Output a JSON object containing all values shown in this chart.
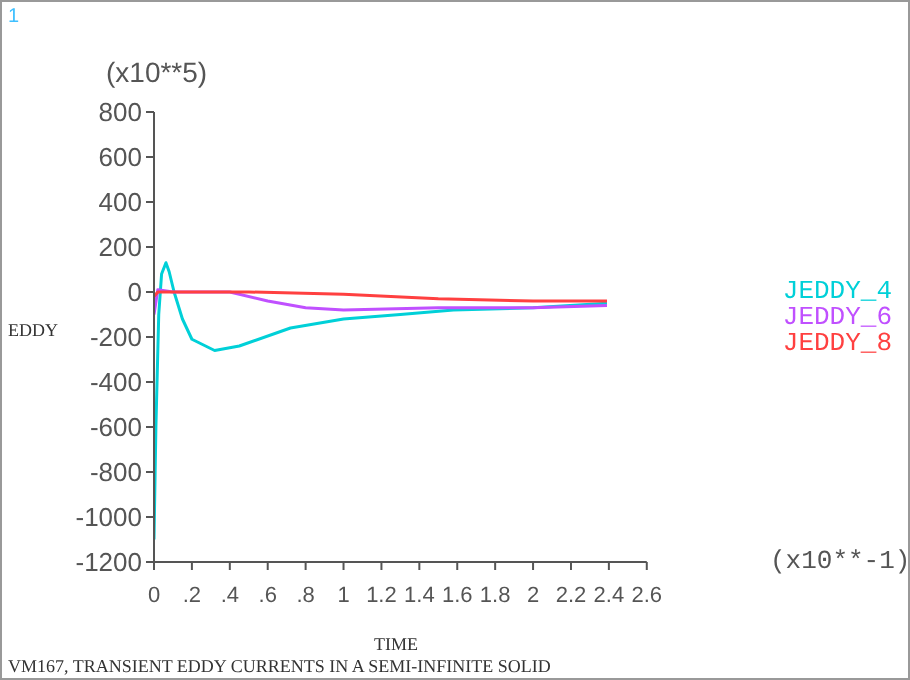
{
  "chart_data": {
    "type": "line",
    "xlabel": "TIME",
    "ylabel": "EDDY",
    "legend": "right",
    "annotations": [
      "1",
      "(x10**5)",
      "(x10**-1)",
      "VM167, TRANSIENT EDDY CURRENTS IN A SEMI-INFINITE SOLID"
    ],
    "xlim": [
      0,
      2.6
    ],
    "ylim": [
      -1200,
      800
    ],
    "xticks": [
      0,
      {
        "value": 0.2,
        "label": ".2"
      },
      {
        "value": 0.4,
        "label": ".4"
      },
      {
        "value": 0.6,
        "label": ".6"
      },
      {
        "value": 0.8,
        "label": ".8"
      },
      1,
      1.2,
      1.4,
      1.6,
      1.8,
      2,
      2.2,
      2.4,
      2.6
    ],
    "yticks": [
      -1200,
      -1000,
      -800,
      -600,
      -400,
      -200,
      0,
      200,
      400,
      600,
      800
    ],
    "series": [
      {
        "name": "JEDDY_4",
        "color": "#00d0d8",
        "x": [
          0,
          0.01,
          0.025,
          0.04,
          0.063,
          0.08,
          0.106,
          0.15,
          0.2,
          0.32,
          0.45,
          0.72,
          1.0,
          1.3,
          1.58,
          2.0,
          2.39
        ],
        "values": [
          -1100,
          -600,
          -100,
          80,
          130,
          90,
          0,
          -120,
          -210,
          -260,
          -240,
          -160,
          -120,
          -100,
          -80,
          -70,
          -50
        ]
      },
      {
        "name": "JEDDY_6",
        "color": "#c050ff",
        "x": [
          0,
          0.02,
          0.1,
          0.4,
          0.6,
          0.8,
          1.0,
          1.5,
          2.0,
          2.39
        ],
        "values": [
          -100,
          10,
          0,
          0,
          -40,
          -70,
          -80,
          -70,
          -70,
          -60
        ]
      },
      {
        "name": "JEDDY_8",
        "color": "#ff4040",
        "x": [
          0,
          0.02,
          0.5,
          1.0,
          1.5,
          2.0,
          2.39
        ],
        "values": [
          -20,
          0,
          0,
          -10,
          -30,
          -40,
          -40
        ]
      }
    ]
  }
}
